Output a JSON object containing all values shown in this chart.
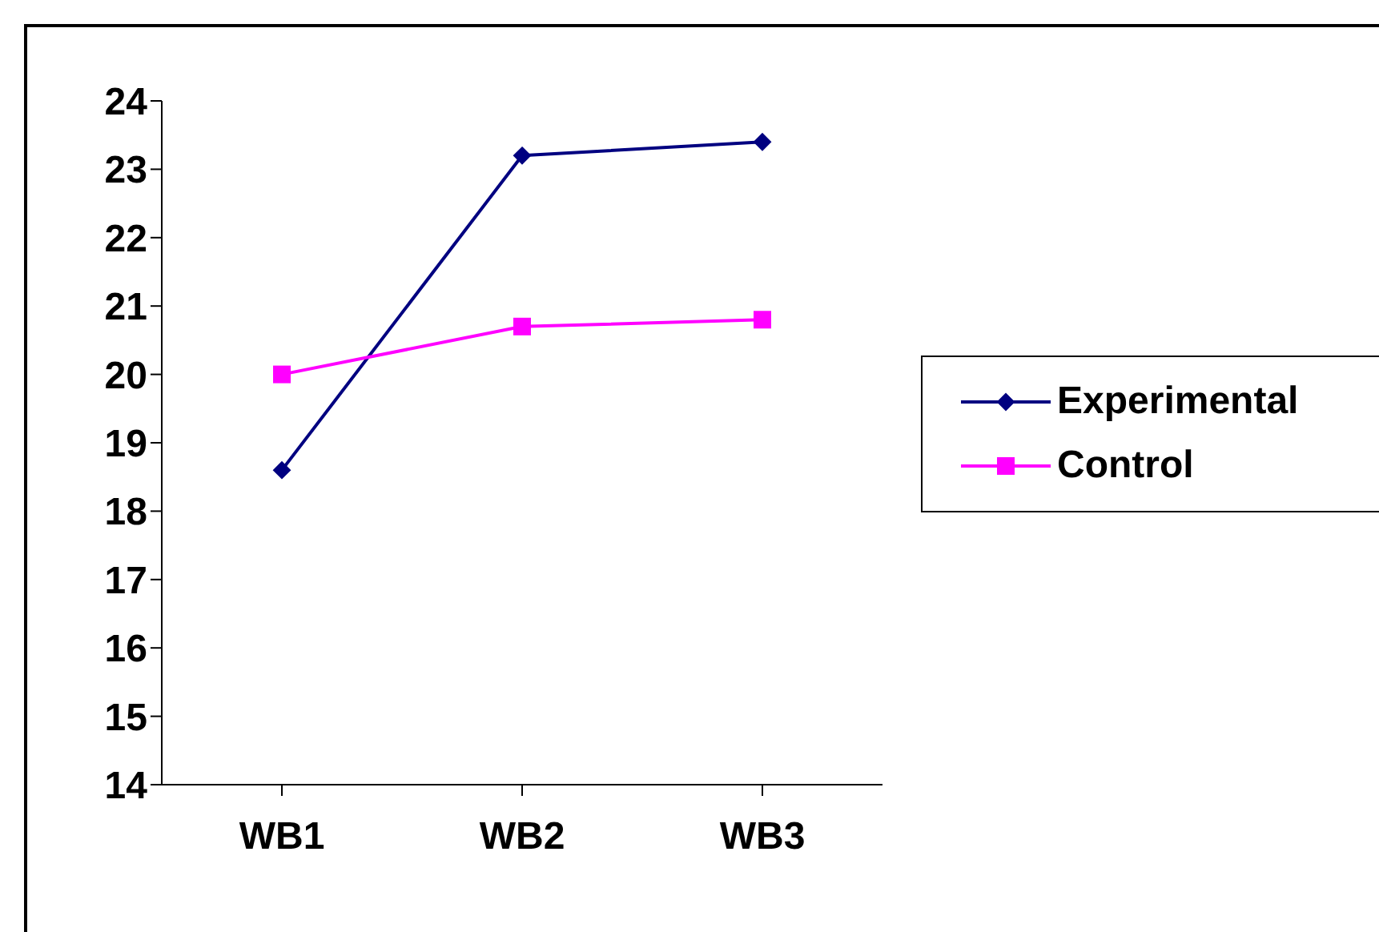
{
  "chart_data": {
    "type": "line",
    "categories": [
      "WB1",
      "WB2",
      "WB3"
    ],
    "series": [
      {
        "name": "Experimental",
        "color": "#000080",
        "marker": "diamond",
        "values": [
          18.6,
          23.2,
          23.4
        ]
      },
      {
        "name": "Control",
        "color": "#ff00ff",
        "marker": "square",
        "values": [
          20.0,
          20.7,
          20.8
        ]
      }
    ],
    "ylim": [
      14,
      24
    ],
    "yticks": [
      14,
      15,
      16,
      17,
      18,
      19,
      20,
      21,
      22,
      23,
      24
    ],
    "grid": false,
    "legend": "right",
    "line_style": "solid"
  }
}
